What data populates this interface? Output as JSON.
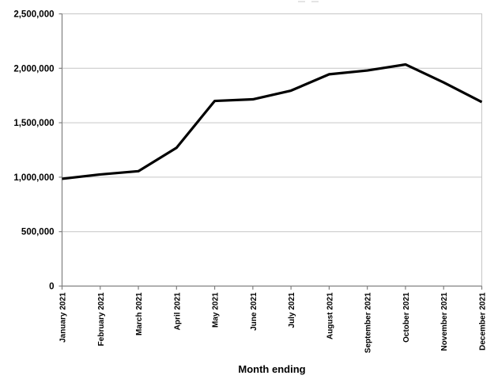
{
  "chart_data": {
    "type": "line",
    "title": "",
    "xlabel": "Month ending",
    "ylabel": "",
    "categories": [
      "January 2021",
      "February 2021",
      "March 2021",
      "April 2021",
      "May 2021",
      "June 2021",
      "July 2021",
      "August 2021",
      "September 2021",
      "October 2021",
      "November 2021",
      "December 2021"
    ],
    "series": [
      {
        "name": "",
        "values": [
          985000,
          1025000,
          1055000,
          1270000,
          1700000,
          1715000,
          1795000,
          1945000,
          1980000,
          2035000,
          1870000,
          1690000
        ]
      }
    ],
    "ylim": [
      0,
      2500000
    ],
    "ytick_interval": 500000,
    "ytick_labels": [
      "0",
      "500,000",
      "1,000,000",
      "1,500,000",
      "2,000,000",
      "2,500,000"
    ],
    "grid": "horizontal",
    "legend_position": "none",
    "colors": {
      "line": "#000000",
      "axis": "#808080",
      "gridline": "#c6c6c6",
      "plot_border": "#c6c6c6",
      "text": "#000000",
      "background": "#ffffff"
    }
  }
}
